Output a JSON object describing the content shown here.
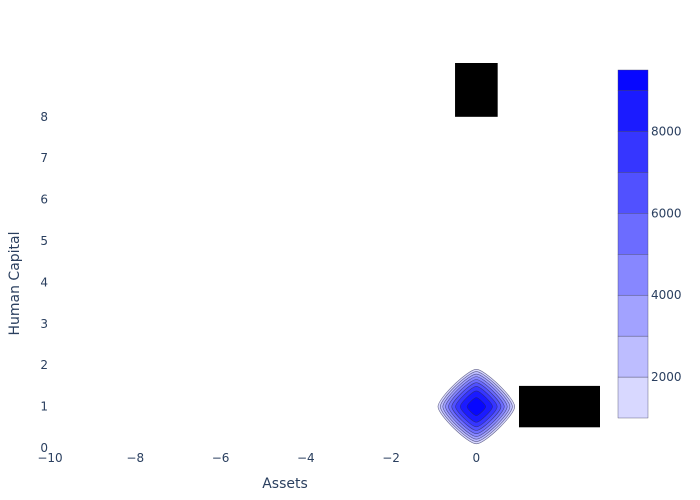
{
  "chart_data": {
    "type": "contour",
    "xlabel": "Assets",
    "ylabel": "Human Capital",
    "xlim": [
      -10,
      2.9
    ],
    "ylim": [
      0,
      9.3
    ],
    "x_ticks": [
      -10,
      -8,
      -6,
      -4,
      -2,
      0
    ],
    "x_tick_labels": [
      "−10",
      "−8",
      "−6",
      "−4",
      "−2",
      "0"
    ],
    "y_ticks": [
      0,
      1,
      2,
      3,
      4,
      5,
      6,
      7,
      8
    ],
    "y_tick_labels": [
      "0",
      "1",
      "2",
      "3",
      "4",
      "5",
      "6",
      "7",
      "8"
    ],
    "grid": false,
    "contour": {
      "center": [
        0,
        1
      ],
      "peak": 9500,
      "levels": [
        1000,
        2000,
        3000,
        4000,
        5000,
        6000,
        7000,
        8000,
        9000
      ],
      "outer_half_width": 0.9,
      "outer_half_height": 0.9
    },
    "rectangles": [
      {
        "x0": -0.5,
        "x1": 0.5,
        "y0": 8.0,
        "y1": 9.3,
        "color": "#000000"
      },
      {
        "x0": 1.0,
        "x1": 2.9,
        "y0": 0.5,
        "y1": 1.5,
        "color": "#000000"
      }
    ],
    "colorbar": {
      "min": 1000,
      "max": 9500,
      "tick_values": [
        2000,
        4000,
        6000,
        8000
      ],
      "tick_labels": [
        "2000",
        "4000",
        "6000",
        "8000"
      ],
      "color_low": "#e5e5ff",
      "color_high": "#0000ff"
    }
  }
}
